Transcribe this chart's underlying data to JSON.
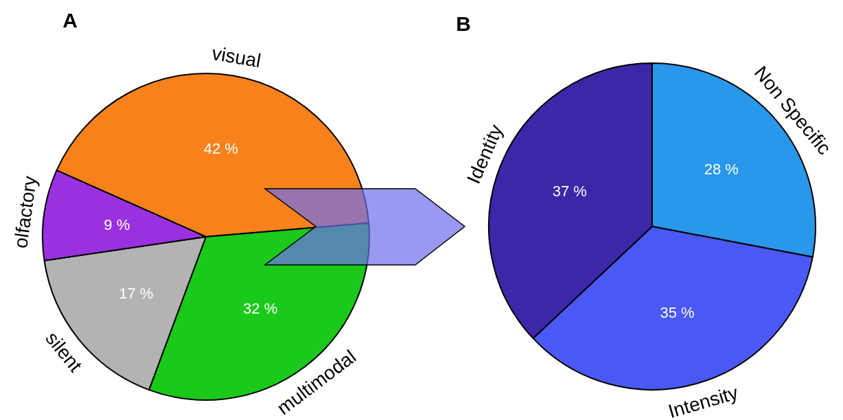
{
  "chart_data": [
    {
      "type": "pie",
      "title": "A",
      "categories": [
        "visual",
        "multimodal",
        "silent",
        "olfactory"
      ],
      "values": [
        42,
        32,
        17,
        9
      ],
      "colors": [
        "#f7821b",
        "#1ac91a",
        "#b3b3b3",
        "#9b30e0"
      ],
      "value_labels": [
        "42 %",
        "32 %",
        "17 %",
        "9 %"
      ]
    },
    {
      "type": "pie",
      "title": "B",
      "categories": [
        "Non Specific",
        "Intensity",
        "Identity"
      ],
      "values": [
        28,
        35,
        37
      ],
      "colors": [
        "#2997ea",
        "#4a58f5",
        "#3a28a8"
      ],
      "value_labels": [
        "28 %",
        "35 %",
        "37 %"
      ]
    }
  ]
}
